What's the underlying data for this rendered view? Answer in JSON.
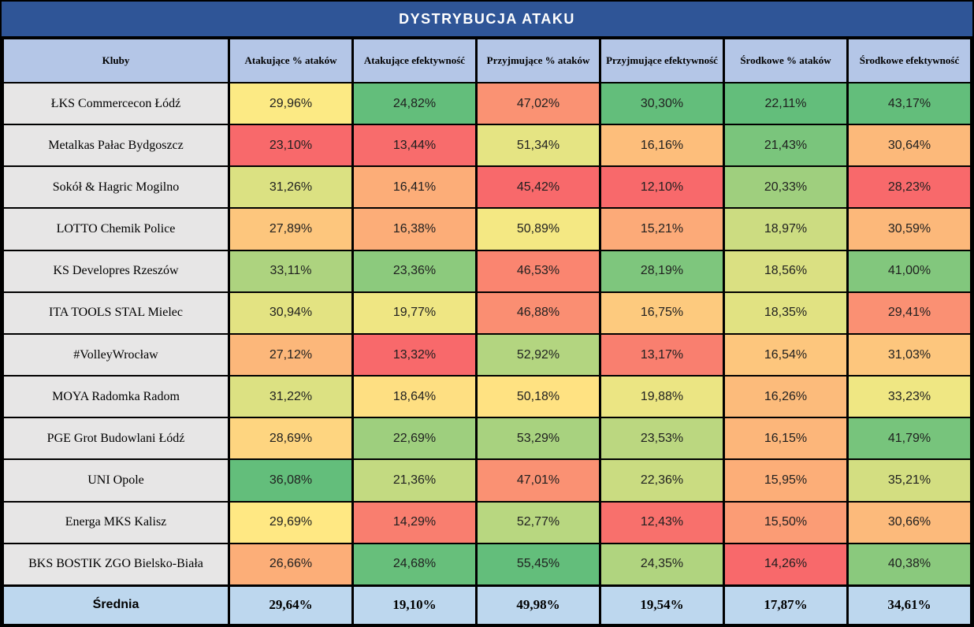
{
  "title": "DYSTRYBUCJA ATAKU",
  "columns": [
    "Kluby",
    "Atakujące % ataków",
    "Atakujące efektywność",
    "Przyjmujące % ataków",
    "Przyjmujące efektywność",
    "Środkowe % ataków",
    "Środkowe efektywność"
  ],
  "colors": {
    "title_bg": "#2F5597",
    "title_text": "#FFFFFF",
    "header_bg": "#B4C6E7",
    "club_bg": "#E7E6E6",
    "average_bg": "#BDD7EE",
    "border": "#000000",
    "scale_min": "#F8696B",
    "scale_mid": "#FFEB84",
    "scale_max": "#63BE7B"
  },
  "chart_data": {
    "type": "heatmap",
    "title": "DYSTRYBUCJA ATAKU",
    "columns": [
      "Atakujące % ataków",
      "Atakujące efektywność",
      "Przyjmujące % ataków",
      "Przyjmujące efektywność",
      "Środkowe % ataków",
      "Środkowe efektywność"
    ],
    "unit": "%",
    "decimal_separator": ",",
    "color_scale": "per-column 3-color scale: min=#F8696B, median=#FFEB84, max=#63BE7B",
    "rows": [
      {
        "club": "ŁKS Commercecon Łódź",
        "values": [
          29.96,
          24.82,
          47.02,
          30.3,
          22.11,
          43.17
        ]
      },
      {
        "club": "Metalkas Pałac Bydgoszcz",
        "values": [
          23.1,
          13.44,
          51.34,
          16.16,
          21.43,
          30.64
        ]
      },
      {
        "club": "Sokół & Hagric Mogilno",
        "values": [
          31.26,
          16.41,
          45.42,
          12.1,
          20.33,
          28.23
        ]
      },
      {
        "club": "LOTTO Chemik Police",
        "values": [
          27.89,
          16.38,
          50.89,
          15.21,
          18.97,
          30.59
        ]
      },
      {
        "club": "KS Developres Rzeszów",
        "values": [
          33.11,
          23.36,
          46.53,
          28.19,
          18.56,
          41.0
        ]
      },
      {
        "club": "ITA TOOLS STAL Mielec",
        "values": [
          30.94,
          19.77,
          46.88,
          16.75,
          18.35,
          29.41
        ]
      },
      {
        "club": "#VolleyWrocław",
        "values": [
          27.12,
          13.32,
          52.92,
          13.17,
          16.54,
          31.03
        ]
      },
      {
        "club": "MOYA Radomka Radom",
        "values": [
          31.22,
          18.64,
          50.18,
          19.88,
          16.26,
          33.23
        ]
      },
      {
        "club": "PGE Grot Budowlani Łódź",
        "values": [
          28.69,
          22.69,
          53.29,
          23.53,
          16.15,
          41.79
        ]
      },
      {
        "club": "UNI Opole",
        "values": [
          36.08,
          21.36,
          47.01,
          22.36,
          15.95,
          35.21
        ]
      },
      {
        "club": "Energa MKS Kalisz",
        "values": [
          29.69,
          14.29,
          52.77,
          12.43,
          15.5,
          30.66
        ]
      },
      {
        "club": "BKS BOSTIK ZGO Bielsko-Biała",
        "values": [
          26.66,
          24.68,
          55.45,
          24.35,
          14.26,
          40.38
        ]
      }
    ],
    "average": {
      "label": "Średnia",
      "values": [
        29.64,
        19.1,
        49.98,
        19.54,
        17.87,
        34.61
      ]
    }
  }
}
